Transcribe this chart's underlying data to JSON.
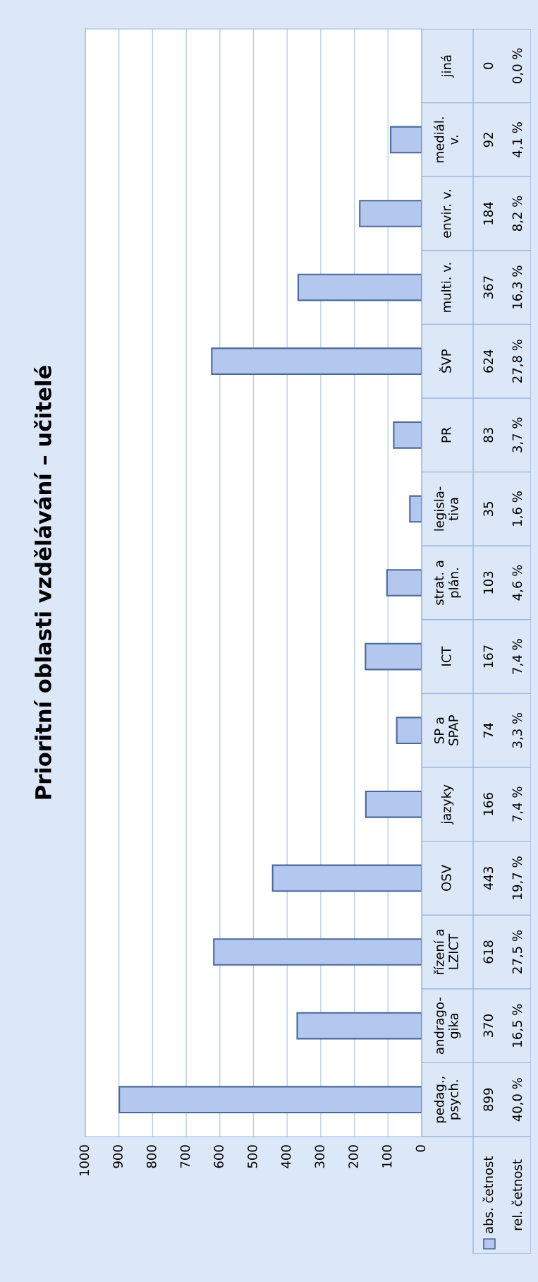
{
  "chart_data": {
    "type": "bar",
    "orientation": "horizontal",
    "title": "Prioritní oblasti vzdělávání – učitelé",
    "categories": [
      "jiná",
      "mediál.\nv.",
      "envir. v.",
      "multi. v.",
      "ŠVP",
      "PR",
      "legisla-\ntiva",
      "strat. a\nplán.",
      "ICT",
      "SP a\nSPAP",
      "jazyky",
      "OSV",
      "řízení a\nLZICT",
      "andrago-\ngika",
      "pedag.,\npsych."
    ],
    "series": [
      {
        "name": "abs. četnost",
        "color": "#b4c7ee",
        "values": [
          0,
          92,
          184,
          367,
          624,
          83,
          35,
          103,
          167,
          74,
          166,
          443,
          618,
          370,
          899
        ]
      }
    ],
    "data_labels": true,
    "annotations": [
      "rel. četnost",
      "0,0 %",
      "4,1 %",
      "8,2 %",
      "16,3 %",
      "27,8 %",
      "3,7 %",
      "1,6 %",
      "4,6 %",
      "7,4 %",
      "3,3 %",
      "7,4 %",
      "19,7 %",
      "27,5 %",
      "16,5 %",
      "40,0 %"
    ],
    "xlim": [
      1000,
      0
    ],
    "xticks": [
      0,
      100,
      200,
      300,
      400,
      500,
      600,
      700,
      800,
      900,
      1000
    ],
    "grid": "x",
    "legend": "bottom"
  }
}
